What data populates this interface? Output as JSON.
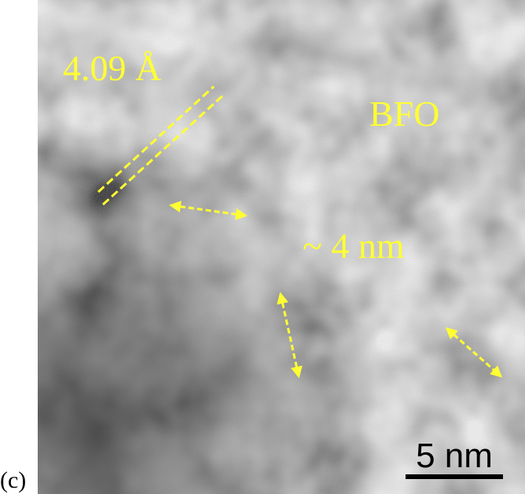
{
  "panel_label": "(c)",
  "annotations": {
    "lattice_spacing": "4.09 Å",
    "material": "BFO",
    "particle_size": "~ 4 nm"
  },
  "scale_bar": {
    "label": "5 nm"
  }
}
